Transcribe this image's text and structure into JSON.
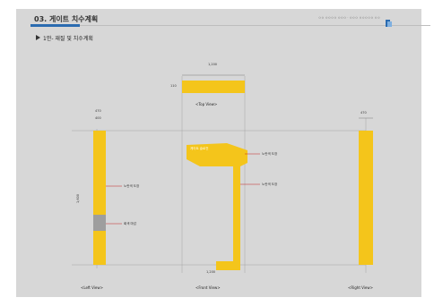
{
  "header": {
    "title": "03. 게이트 치수계획",
    "subtitle": "1안- 재질 및 치수계획",
    "right_text": "ㅇㅇ ㅇㅇㅇㅇ ㅇㅇㅇ · ㅇㅇㅇ ㅇㅇㅇㅇㅇ ㅇㅇ",
    "logo_text": "ㅇㅇㅇㅇ"
  },
  "captions": {
    "top_view": "<Top View>",
    "left_view": "<Left View>",
    "front_view": "<Front View>",
    "right_view": "<Right View>"
  },
  "dimensions": {
    "top_width": "1,200",
    "top_height": "110",
    "left_outer": "470",
    "left_inner": "400",
    "left_height": "1,600",
    "right_outer": "470",
    "front_bottom": "1,200"
  },
  "annotations": {
    "left_label1": "노란색 도장",
    "left_label2": "회색 마감",
    "front_label1": "노란색 도장",
    "front_label2": "노란색 도장",
    "front_text": "게이트 슬로건"
  },
  "colors": {
    "accent": "#2a6bb0",
    "yellow": "#f4c51b",
    "background": "#d7d7d7"
  }
}
